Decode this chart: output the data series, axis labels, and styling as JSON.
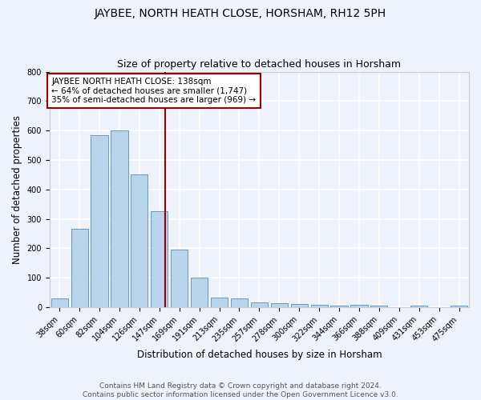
{
  "title": "JAYBEE, NORTH HEATH CLOSE, HORSHAM, RH12 5PH",
  "subtitle": "Size of property relative to detached houses in Horsham",
  "xlabel": "Distribution of detached houses by size in Horsham",
  "ylabel": "Number of detached properties",
  "categories": [
    "38sqm",
    "60sqm",
    "82sqm",
    "104sqm",
    "126sqm",
    "147sqm",
    "169sqm",
    "191sqm",
    "213sqm",
    "235sqm",
    "257sqm",
    "278sqm",
    "300sqm",
    "322sqm",
    "344sqm",
    "366sqm",
    "388sqm",
    "409sqm",
    "431sqm",
    "453sqm",
    "475sqm"
  ],
  "values": [
    30,
    265,
    585,
    600,
    450,
    325,
    195,
    100,
    33,
    30,
    15,
    13,
    10,
    8,
    5,
    8,
    5,
    0,
    5,
    0,
    5
  ],
  "bar_color": "#b8d4ea",
  "bar_edge_color": "#6699cc",
  "red_line_x": 5.3,
  "annotation_lines": [
    "JAYBEE NORTH HEATH CLOSE: 138sqm",
    "← 64% of detached houses are smaller (1,747)",
    "35% of semi-detached houses are larger (969) →"
  ],
  "annotation_box_color": "white",
  "annotation_box_edge": "#990000",
  "red_line_color": "#990000",
  "footer": "Contains HM Land Registry data © Crown copyright and database right 2024.\nContains public sector information licensed under the Open Government Licence v3.0.",
  "ylim": [
    0,
    800
  ],
  "yticks": [
    0,
    100,
    200,
    300,
    400,
    500,
    600,
    700,
    800
  ],
  "background_color": "#eef2fa",
  "grid_color": "white",
  "title_fontsize": 10,
  "subtitle_fontsize": 9,
  "axis_label_fontsize": 8.5,
  "tick_fontsize": 7,
  "footer_fontsize": 6.5,
  "annotation_fontsize": 7.5
}
